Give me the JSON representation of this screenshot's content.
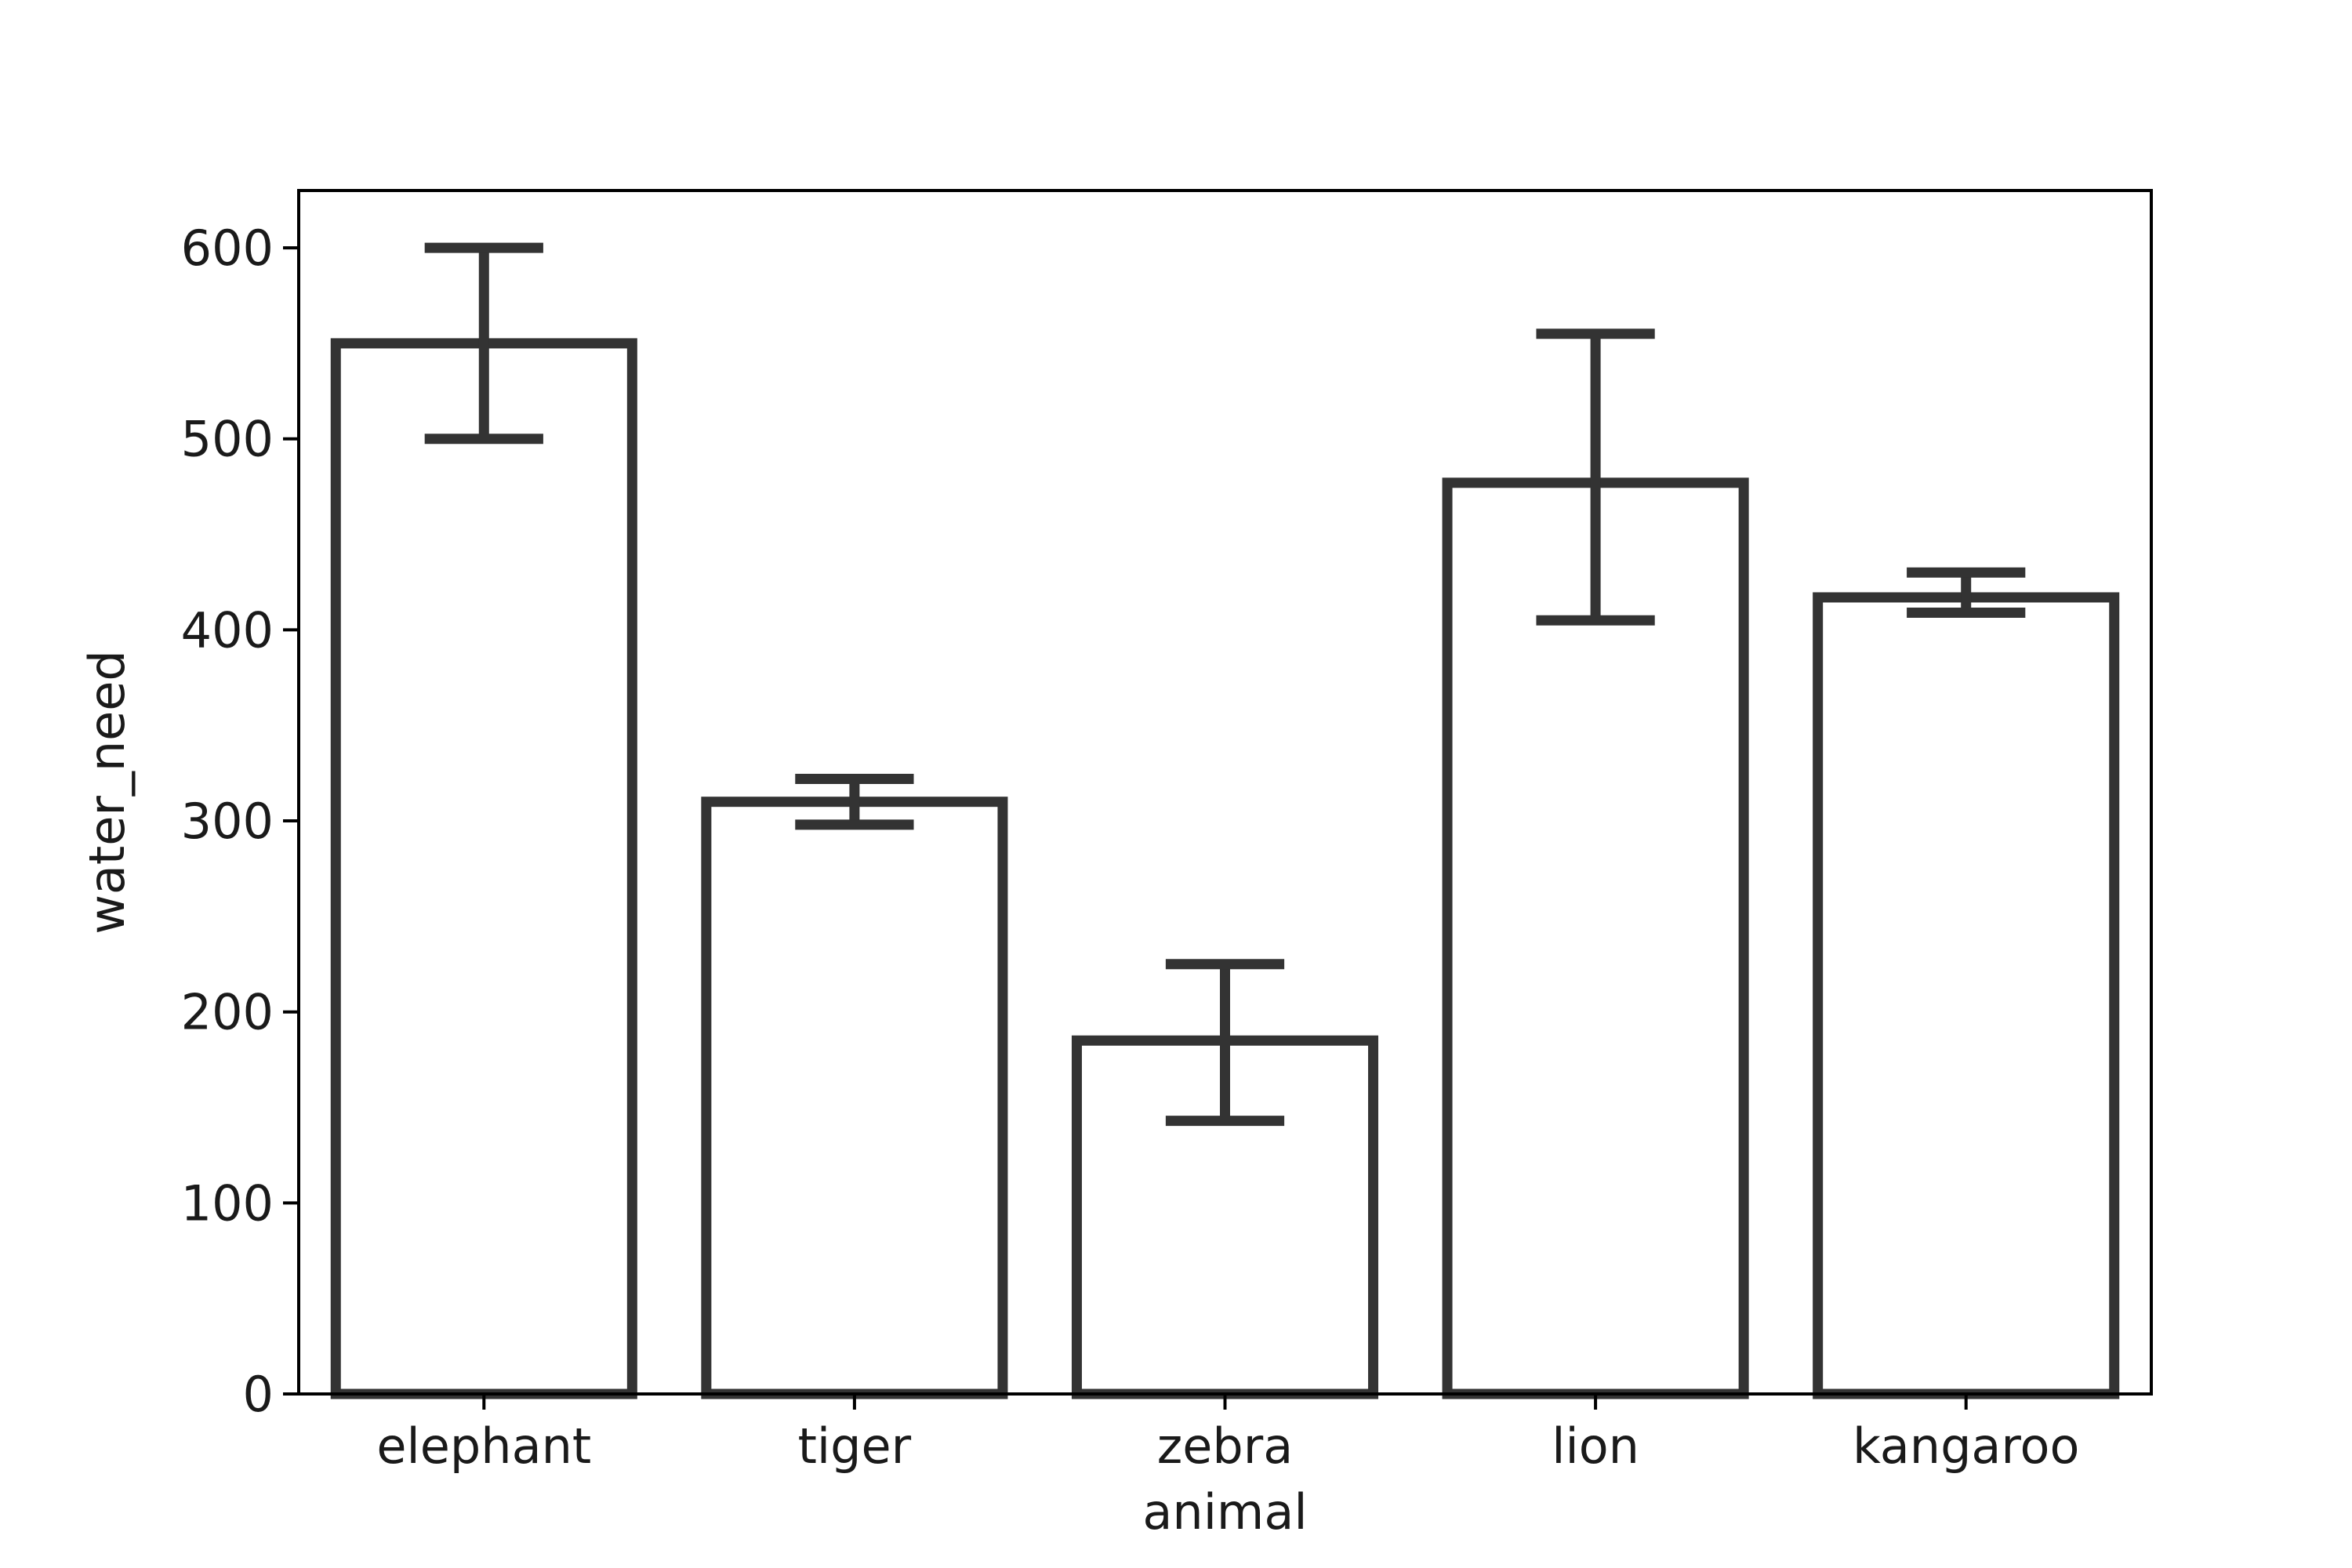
{
  "chart_data": {
    "type": "bar",
    "title": "",
    "xlabel": "animal",
    "ylabel": "water_need",
    "categories": [
      "elephant",
      "tiger",
      "zebra",
      "lion",
      "kangaroo"
    ],
    "values": [
      550,
      310,
      185,
      477,
      417
    ],
    "error_low": [
      500,
      298,
      143,
      405,
      409
    ],
    "error_high": [
      600,
      322,
      225,
      555,
      430
    ],
    "ylim": [
      0,
      630
    ],
    "yticks": [
      0,
      100,
      200,
      300,
      400,
      500,
      600
    ],
    "grid": false,
    "legend": "none",
    "colors": {
      "bar_fill": "#ffffff",
      "bar_edge": "#333333",
      "error_bar": "#333333",
      "axis": "#000000"
    }
  }
}
